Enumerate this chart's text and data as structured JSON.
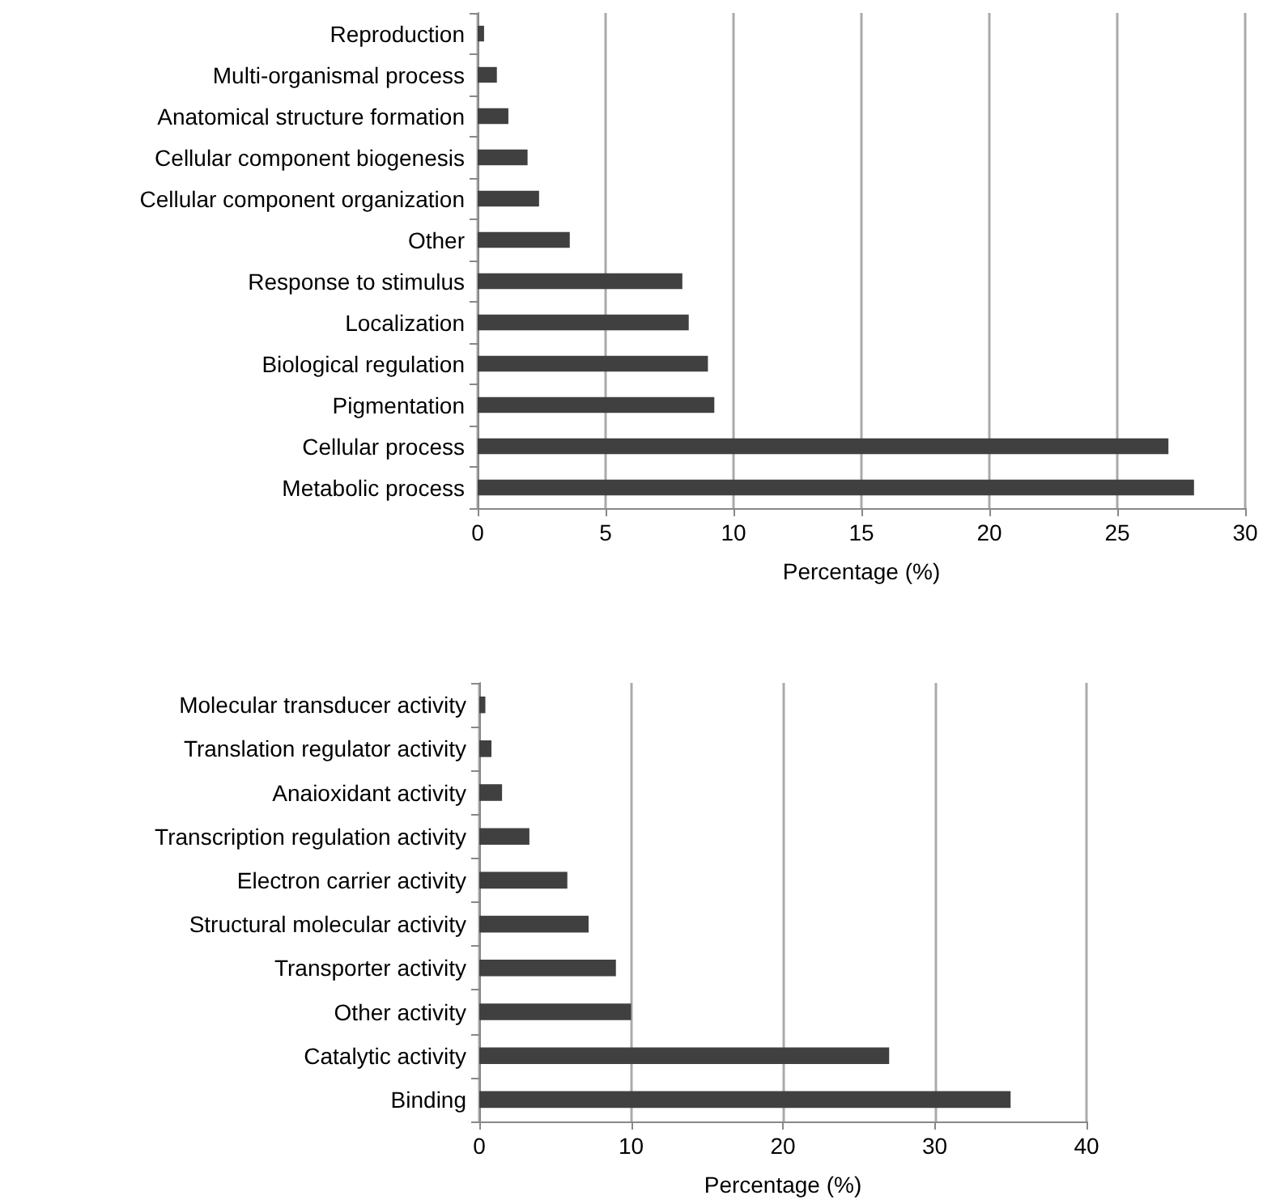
{
  "chart_data": [
    {
      "type": "bar",
      "orientation": "horizontal",
      "categories": [
        "Reproduction",
        "Multi-organismal process",
        "Anatomical structure formation",
        "Cellular component biogenesis",
        "Cellular component organization",
        "Other",
        "Response to stimulus",
        "Localization",
        "Biological regulation",
        "Pigmentation",
        "Cellular process",
        "Metabolic process"
      ],
      "values": [
        0.25,
        0.75,
        1.2,
        1.95,
        2.4,
        3.6,
        8.0,
        8.25,
        9.0,
        9.25,
        27.0,
        28.0
      ],
      "color": "#404040",
      "xlim": [
        0,
        30
      ],
      "xticks": [
        0,
        5,
        10,
        15,
        20,
        25,
        30
      ],
      "xlabel": "Percentage (%)",
      "grid": "x"
    },
    {
      "type": "bar",
      "orientation": "horizontal",
      "categories": [
        "Molecular transducer activity",
        "Translation regulator activity",
        "Anaioxidant activity",
        "Transcription regulation activity",
        "Electron carrier activity",
        "Structural molecular activity",
        "Transporter activity",
        "Other activity",
        "Catalytic activity",
        "Binding"
      ],
      "values": [
        0.4,
        0.8,
        1.5,
        3.3,
        5.8,
        7.2,
        9.0,
        10.0,
        27.0,
        35.0
      ],
      "color": "#404040",
      "xlim": [
        0,
        40
      ],
      "xticks": [
        0,
        10,
        20,
        30,
        40
      ],
      "xlabel": "Percentage (%)",
      "grid": "x"
    }
  ]
}
